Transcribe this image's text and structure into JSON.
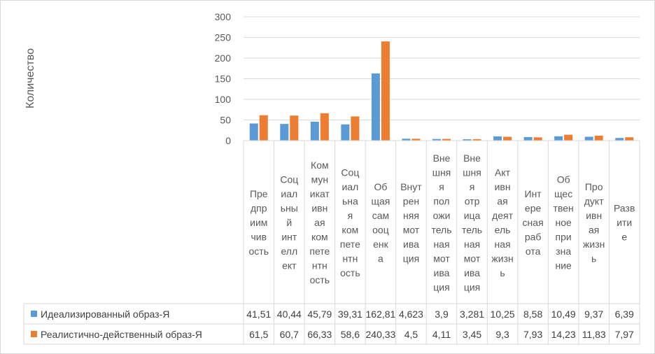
{
  "chart_data": {
    "type": "bar",
    "ylabel": "Количество",
    "ylim": [
      0,
      300
    ],
    "yticks": [
      "0",
      "50",
      "100",
      "150",
      "200",
      "250",
      "300"
    ],
    "grid": true,
    "legend_placement": "data-table-left",
    "categories": [
      "Предприимчивость",
      "Социальный интеллект",
      "Коммуникативная компетентность",
      "Социальная компетентность",
      "Общая самооценка",
      "Внутренняя мотивация",
      "Внешняя положительная мотивация",
      "Внешняя отрицательная мотивация",
      "Активная деятельная жизнь",
      "Интересная работа",
      "Общественное признание",
      "Продуктивная жизнь",
      "Развитие"
    ],
    "category_lines": [
      [
        "Пре",
        "дпр",
        "иим",
        "чив",
        "ость"
      ],
      [
        "Соц",
        "иал",
        "ьны",
        "й",
        "инт",
        "елл",
        "ект"
      ],
      [
        "Ком",
        "мун",
        "икат",
        "ивн",
        "ая",
        "ком",
        "пете",
        "нтн",
        "ость"
      ],
      [
        "Соц",
        "иал",
        "ьна",
        "я",
        "ком",
        "пете",
        "нтн",
        "ость"
      ],
      [
        "Об",
        "щая",
        "сам",
        "ооц",
        "енк",
        "а"
      ],
      [
        "Внут",
        "рен",
        "няя",
        "мот",
        "ива",
        "ция"
      ],
      [
        "Вне",
        "шня",
        "я",
        "пол",
        "ожи",
        "тель",
        "ная",
        "мот",
        "ива",
        "ция"
      ],
      [
        "Вне",
        "шня",
        "я",
        "отр",
        "ица",
        "тель",
        "ная",
        "мот",
        "ива",
        "ция"
      ],
      [
        "Акт",
        "ивн",
        "ая",
        "деят",
        "ель",
        "ная",
        "жизн",
        "ь"
      ],
      [
        "Инт",
        "ере",
        "сная",
        "раб",
        "ота"
      ],
      [
        "Об",
        "щес",
        "твен",
        "ное",
        "при",
        "зна",
        "ние"
      ],
      [
        "Про",
        "дукт",
        "ивн",
        "ая",
        "жизн",
        "ь"
      ],
      [
        "Разв",
        "ити",
        "е"
      ]
    ],
    "series": [
      {
        "name": "Идеализированный образ-Я",
        "color": "#5b9bd5",
        "values": [
          41.51,
          40.44,
          45.79,
          39.31,
          162.81,
          4.623,
          3.9,
          3.281,
          10.25,
          8.58,
          10.49,
          9.37,
          6.39
        ],
        "labels": [
          "41,51",
          "40,44",
          "45,79",
          "39,31",
          "162,81",
          "4,623",
          "3,9",
          "3,281",
          "10,25",
          "8,58",
          "10,49",
          "9,37",
          "6,39"
        ]
      },
      {
        "name": "Реалистично-действенный образ-Я",
        "color": "#ed7d31",
        "values": [
          61.5,
          60.7,
          66.33,
          58.6,
          240.33,
          4.5,
          4.11,
          3.45,
          9.3,
          7.93,
          14.23,
          11.83,
          7.97
        ],
        "labels": [
          "61,5",
          "60,7",
          "66,33",
          "58,6",
          "240,33",
          "4,5",
          "4,11",
          "3,45",
          "9,3",
          "7,93",
          "14,23",
          "11,83",
          "7,97"
        ]
      }
    ]
  }
}
